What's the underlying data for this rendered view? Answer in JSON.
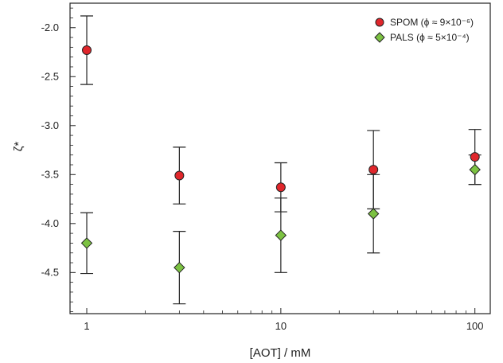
{
  "chart_data": {
    "type": "scatter",
    "xlabel": "[AOT] / mM",
    "ylabel": "ζ*",
    "x_scale": "log",
    "xlim": [
      0.82,
      120
    ],
    "ylim": [
      -4.92,
      -1.75
    ],
    "x_ticks": [
      1,
      10,
      100
    ],
    "x_tick_labels": [
      "1",
      "10",
      "100"
    ],
    "y_ticks": [
      -2.0,
      -2.5,
      -3.0,
      -3.5,
      -4.0,
      -4.5
    ],
    "y_tick_labels": [
      "-2.0",
      "-2.5",
      "-3.0",
      "-3.5",
      "-4.0",
      "-4.5"
    ],
    "legend_position": "top-right",
    "grid": false,
    "series": [
      {
        "name": "SPOM (ϕ ≈ 9×10⁻⁶)",
        "marker": "circle",
        "color": "#e0262b",
        "x": [
          1,
          3,
          10,
          30,
          100
        ],
        "y": [
          -2.23,
          -3.51,
          -3.63,
          -3.45,
          -3.32
        ],
        "err": [
          0.35,
          0.29,
          0.25,
          0.4,
          0.28
        ]
      },
      {
        "name": "PALS (ϕ ≈ 5×10⁻⁴)",
        "marker": "diamond",
        "color": "#7cc242",
        "x": [
          1,
          3,
          10,
          30,
          100
        ],
        "y": [
          -4.2,
          -4.45,
          -4.12,
          -3.9,
          -3.45
        ],
        "err": [
          0.31,
          0.37,
          0.38,
          0.4,
          0.15
        ]
      }
    ]
  }
}
